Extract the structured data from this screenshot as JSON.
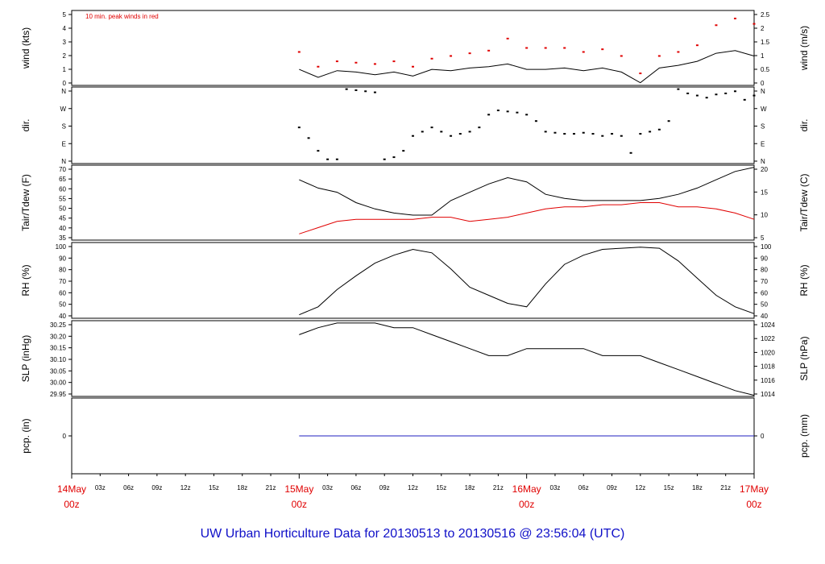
{
  "title": "UW Urban Horticulture Data for 20130513  to  20130516 @ 23:56:04  (UTC)",
  "colors": {
    "title": "#1010c8",
    "peak": "#e00000",
    "dew": "#e00000",
    "line": "#000000",
    "pcp": "#2020c0",
    "day_labels": "#e00000"
  },
  "x_axis": {
    "day_labels": [
      {
        "day": "14May",
        "hour": "00z"
      },
      {
        "day": "15May",
        "hour": "00z"
      },
      {
        "day": "16May",
        "hour": "00z"
      },
      {
        "day": "17May",
        "hour": "00z"
      }
    ],
    "hour_labels": [
      "03z",
      "06z",
      "09z",
      "12z",
      "15z",
      "18z",
      "21z"
    ],
    "hour_range": [
      0,
      72
    ]
  },
  "chart_data": [
    {
      "type": "line",
      "id": "wind",
      "ylabel_left": "wind (kts)",
      "ylabel_right": "wind (m/s)",
      "annotation": "10 min. peak winds in red",
      "ylim": [
        0,
        5.6
      ],
      "yticks_left": [
        "0",
        "1",
        "2",
        "3",
        "4",
        "5"
      ],
      "yticks_right": [
        "0",
        "0.5",
        "1",
        "1.5",
        "2",
        "2.5"
      ],
      "series": [
        {
          "x": [
            24,
            26,
            28,
            30,
            32,
            34,
            36,
            38,
            40,
            42,
            44,
            46,
            48,
            50,
            52,
            54,
            56,
            58,
            60,
            62,
            64,
            66,
            68,
            70,
            72
          ],
          "y": [
            1.2,
            0.6,
            1.1,
            1.0,
            0.8,
            1.0,
            0.7,
            1.2,
            1.1,
            1.3,
            1.4,
            1.6,
            1.2,
            1.2,
            1.3,
            1.1,
            1.3,
            1.0,
            0.2,
            1.3,
            1.5,
            1.8,
            2.4,
            2.6,
            2.2
          ]
        },
        {
          "style": "points",
          "x": [
            24,
            26,
            28,
            30,
            32,
            34,
            36,
            38,
            40,
            42,
            44,
            46,
            48,
            50,
            52,
            54,
            56,
            58,
            60,
            62,
            64,
            66,
            68,
            70,
            72
          ],
          "y": [
            2.5,
            1.4,
            1.8,
            1.7,
            1.6,
            1.8,
            1.4,
            2.0,
            2.2,
            2.4,
            2.6,
            3.5,
            2.8,
            2.8,
            2.8,
            2.5,
            2.7,
            2.2,
            0.9,
            2.2,
            2.5,
            3.0,
            4.5,
            5.0,
            4.6
          ]
        }
      ]
    },
    {
      "type": "scatter",
      "id": "dir",
      "ylabel": "dir.",
      "ylim": [
        0,
        360
      ],
      "yticks": [
        "N",
        "E",
        "S",
        "W",
        "N"
      ],
      "series": [
        {
          "x": [
            24,
            25,
            26,
            27,
            28,
            29,
            30,
            31,
            32,
            33,
            34,
            35,
            36,
            37,
            38,
            39,
            40,
            41,
            42,
            43,
            44,
            45,
            46,
            47,
            48,
            49,
            50,
            51,
            52,
            53,
            54,
            55,
            56,
            57,
            58,
            59,
            60,
            61,
            62,
            63,
            64,
            65,
            66,
            67,
            68,
            69,
            70,
            71,
            72
          ],
          "y": [
            170,
            120,
            60,
            20,
            20,
            350,
            345,
            340,
            335,
            20,
            30,
            60,
            130,
            150,
            170,
            150,
            130,
            140,
            150,
            170,
            230,
            250,
            245,
            240,
            230,
            200,
            150,
            145,
            140,
            140,
            145,
            140,
            130,
            140,
            130,
            50,
            140,
            150,
            160,
            200,
            350,
            330,
            320,
            310,
            325,
            330,
            340,
            300,
            320
          ]
        }
      ]
    },
    {
      "type": "line",
      "id": "temp",
      "ylabel_left": "Tair/Tdew (F)",
      "ylabel_right": "Tair/Tdew (C)",
      "ylim": [
        35,
        71
      ],
      "yticks_left": [
        "35",
        "40",
        "45",
        "50",
        "55",
        "60",
        "65",
        "70"
      ],
      "yticks_right": [
        "5",
        "10",
        "15",
        "20"
      ],
      "series": [
        {
          "x": [
            24,
            26,
            28,
            30,
            32,
            34,
            36,
            38,
            40,
            42,
            44,
            46,
            48,
            50,
            52,
            54,
            56,
            58,
            60,
            62,
            64,
            66,
            68,
            70,
            72
          ],
          "y": [
            64,
            60,
            58,
            53,
            50,
            48,
            47,
            47,
            54,
            58,
            62,
            65,
            63,
            57,
            55,
            54,
            54,
            54,
            54,
            55,
            57,
            60,
            64,
            68,
            70
          ]
        },
        {
          "x": [
            24,
            26,
            28,
            30,
            32,
            34,
            36,
            38,
            40,
            42,
            44,
            46,
            48,
            50,
            52,
            54,
            56,
            58,
            60,
            62,
            64,
            66,
            68,
            70,
            72
          ],
          "y": [
            38,
            41,
            44,
            45,
            45,
            45,
            45,
            46,
            46,
            44,
            45,
            46,
            48,
            50,
            51,
            51,
            52,
            52,
            53,
            53,
            51,
            51,
            50,
            48,
            45
          ]
        }
      ]
    },
    {
      "type": "line",
      "id": "rh",
      "ylabel_left": "RH (%)",
      "ylabel_right": "RH (%)",
      "ylim": [
        35,
        101
      ],
      "yticks_left": [
        "40",
        "50",
        "60",
        "70",
        "80",
        "90",
        "100"
      ],
      "yticks_right": [
        "40",
        "50",
        "60",
        "70",
        "80",
        "90",
        "100"
      ],
      "series": [
        {
          "x": [
            24,
            26,
            28,
            30,
            32,
            34,
            36,
            38,
            40,
            42,
            44,
            46,
            48,
            50,
            52,
            54,
            56,
            58,
            60,
            62,
            64,
            66,
            68,
            70,
            72
          ],
          "y": [
            38,
            45,
            60,
            72,
            83,
            90,
            95,
            92,
            78,
            62,
            55,
            48,
            45,
            65,
            82,
            90,
            95,
            96,
            97,
            96,
            85,
            70,
            55,
            45,
            39
          ]
        }
      ]
    },
    {
      "type": "line",
      "id": "slp",
      "ylabel_left": "SLP (inHg)",
      "ylabel_right": "SLP (hPa)",
      "ylim": [
        29.945,
        30.27
      ],
      "yticks_left": [
        "29.95",
        "30.00",
        "30.05",
        "30.10",
        "30.15",
        "30.20",
        "30.25"
      ],
      "yticks_right": [
        "1014",
        "1016",
        "1018",
        "1020",
        "1022",
        "1024"
      ],
      "series": [
        {
          "x": [
            24,
            26,
            28,
            30,
            32,
            34,
            36,
            38,
            40,
            42,
            44,
            46,
            48,
            50,
            52,
            54,
            56,
            58,
            60,
            62,
            64,
            66,
            68,
            70,
            72
          ],
          "y": [
            30.21,
            30.24,
            30.26,
            30.26,
            30.26,
            30.24,
            30.24,
            30.21,
            30.18,
            30.15,
            30.12,
            30.12,
            30.15,
            30.15,
            30.15,
            30.15,
            30.12,
            30.12,
            30.12,
            30.09,
            30.06,
            30.03,
            30.0,
            29.97,
            29.95
          ]
        }
      ]
    },
    {
      "type": "line",
      "id": "pcp",
      "ylabel_left": "pcp. (in)",
      "ylabel_right": "pcp. (mm)",
      "ylim": [
        -1,
        1
      ],
      "yticks_left": [
        "0"
      ],
      "yticks_right": [
        "0"
      ],
      "series": [
        {
          "x": [
            24,
            72
          ],
          "y": [
            0,
            0
          ]
        }
      ]
    }
  ]
}
